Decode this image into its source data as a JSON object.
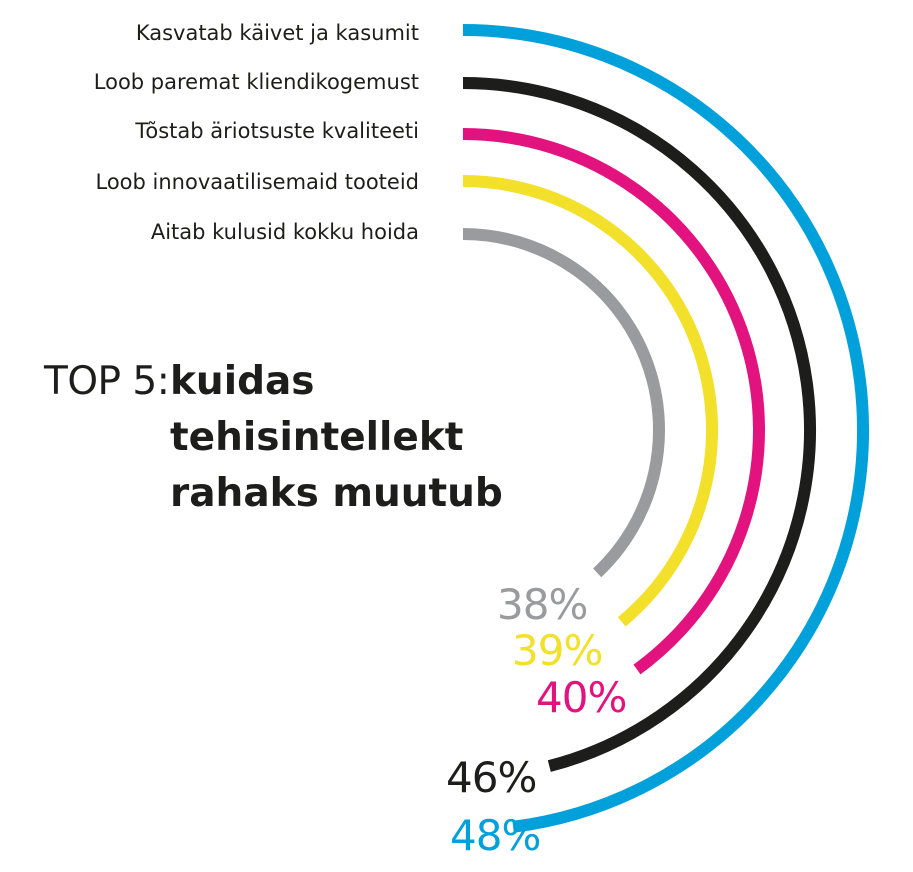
{
  "title": {
    "prefix": "TOP 5:",
    "lines": [
      "kuidas",
      "tehisintellekt",
      "rahaks muutub"
    ]
  },
  "chart_data": {
    "type": "radial-bar",
    "title": "TOP 5: kuidas tehisintellekt rahaks muutub",
    "unit": "%",
    "categories": [
      "Kasvatab käivet ja kasumit",
      "Loob paremat kliendikogemust",
      "Tõstab äriotsuste kvaliteeti",
      "Loob innovaatilisemaid tooteid",
      "Aitab kulusid kokku hoida"
    ],
    "values": [
      48,
      46,
      40,
      39,
      38
    ],
    "value_labels": [
      "48%",
      "46%",
      "40%",
      "39%",
      "38%"
    ],
    "colors": [
      "#00a0db",
      "#1d1d1b",
      "#e2127e",
      "#f2e02a",
      "#9a9b9e"
    ]
  }
}
